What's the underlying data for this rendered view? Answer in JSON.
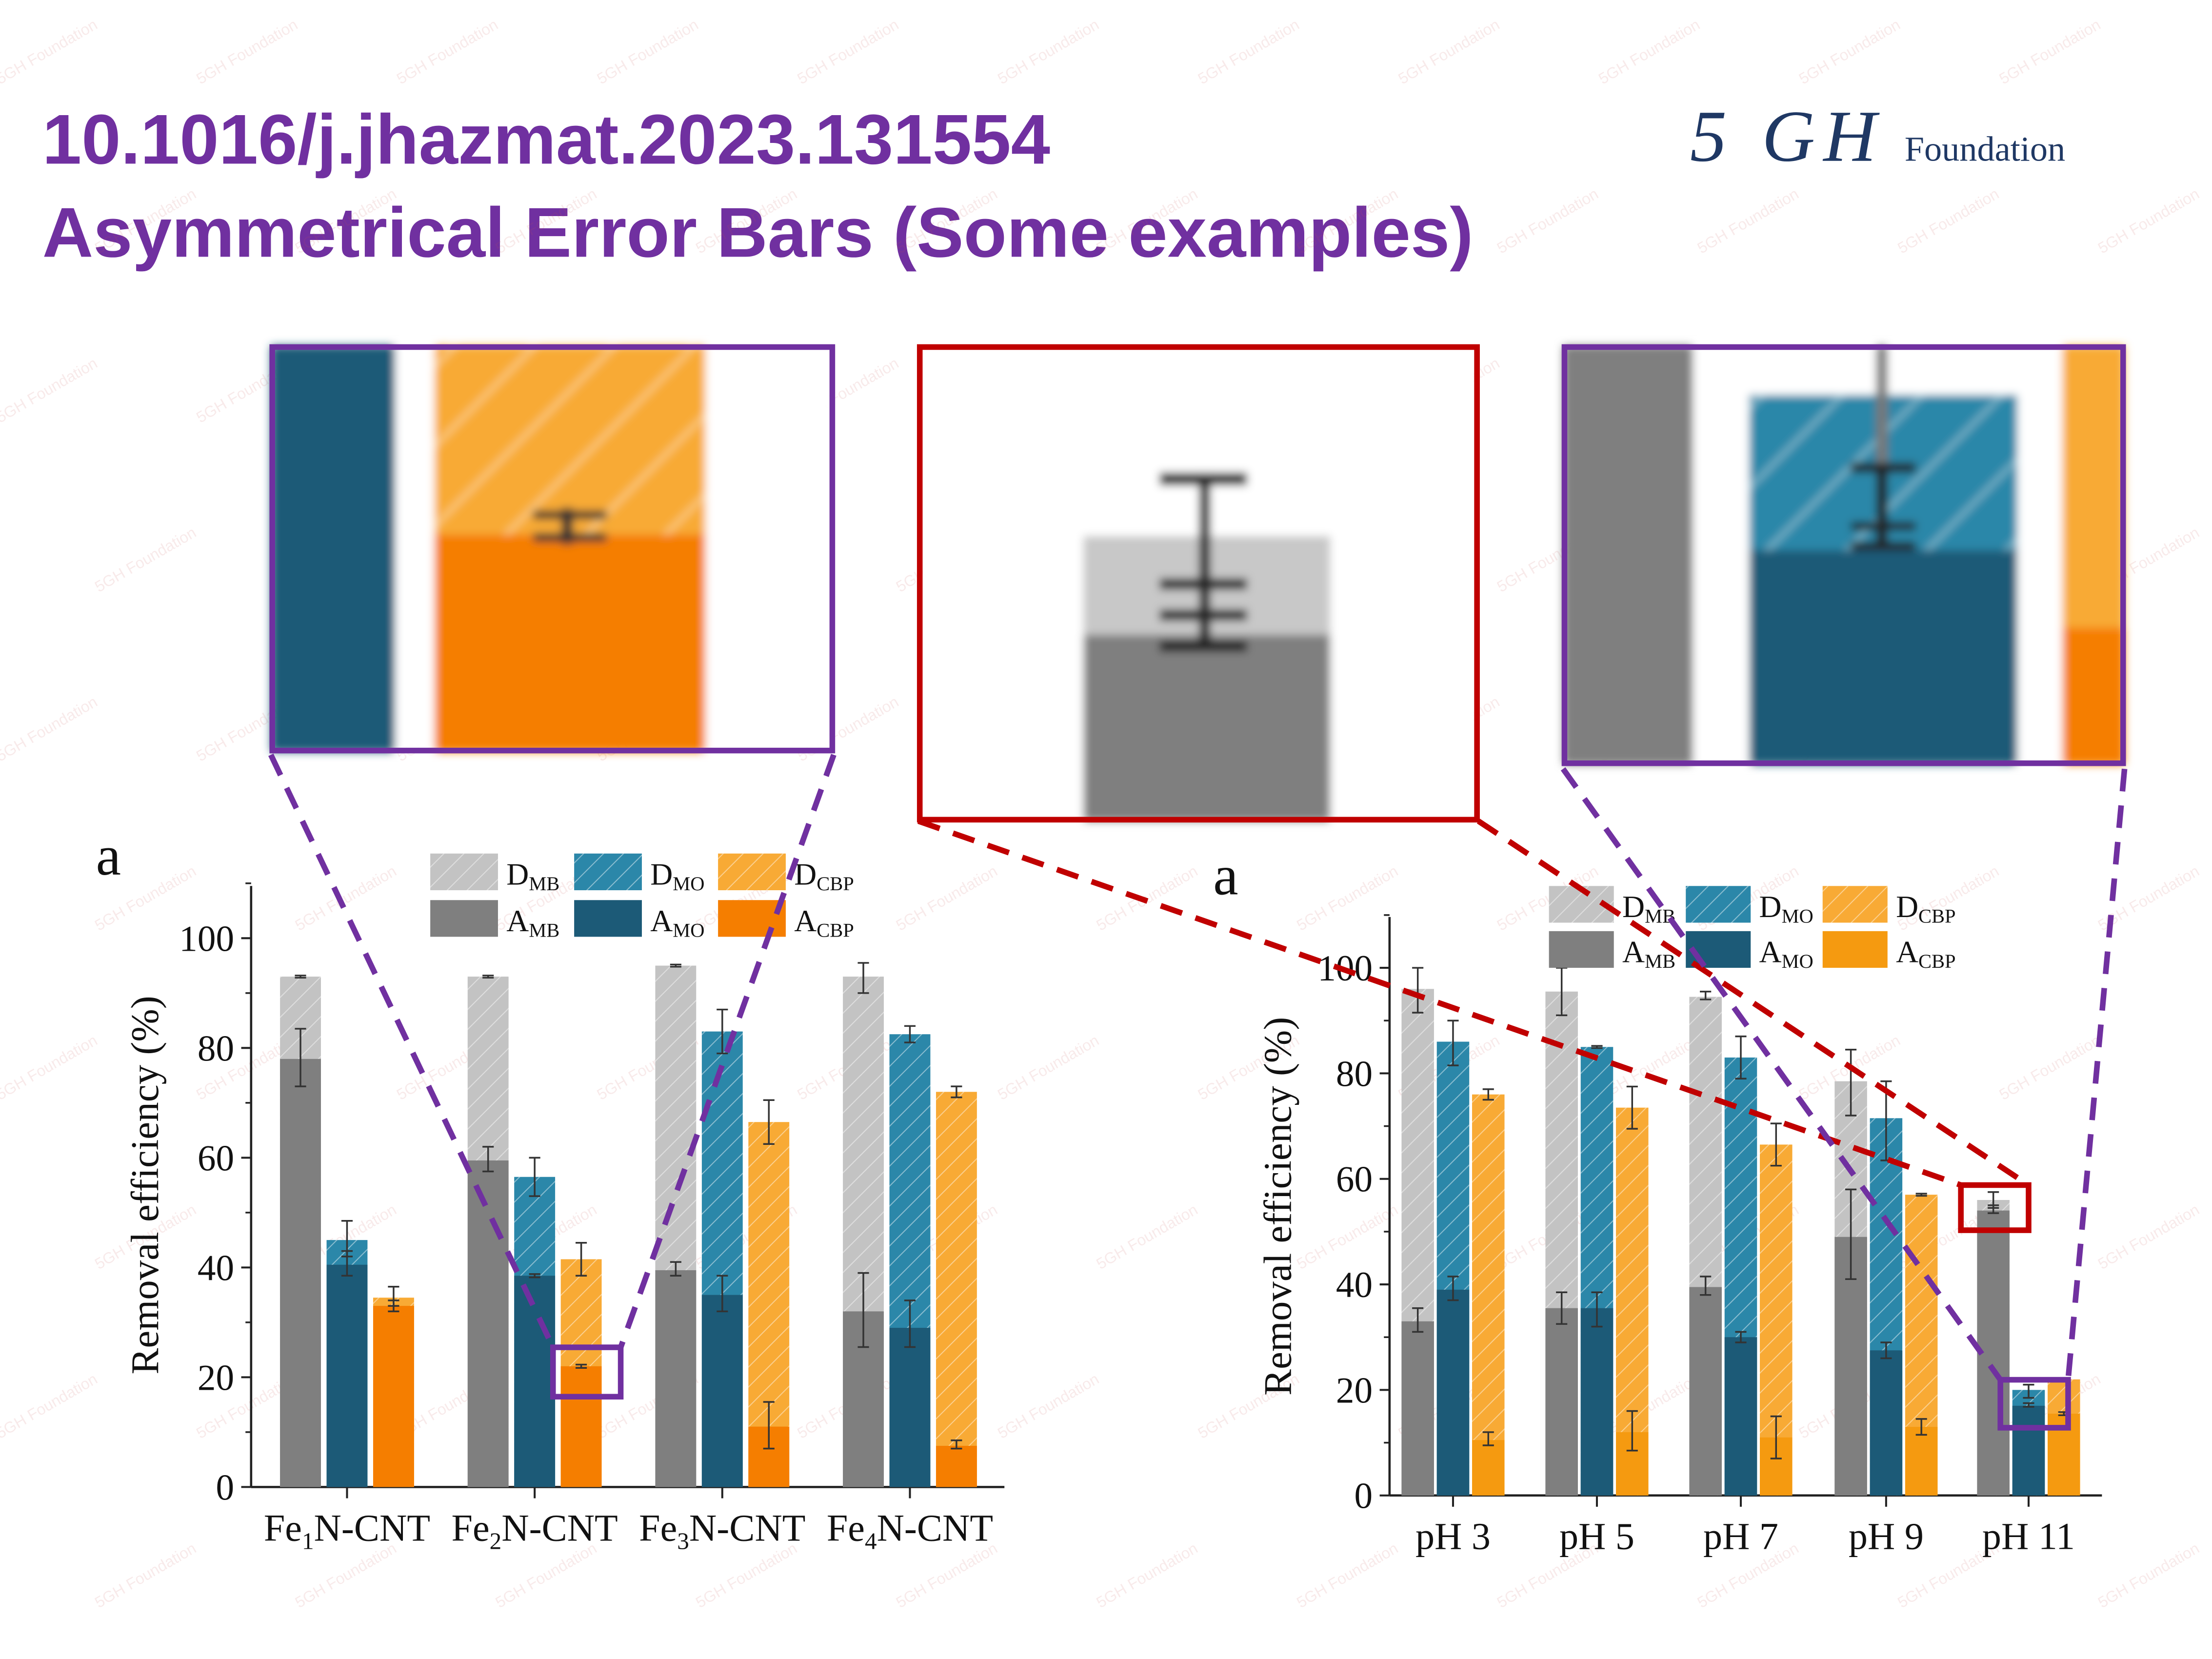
{
  "slide": {
    "title_line1": "10.1016/j.jhazmat.2023.131554",
    "title_line2": "Asymmetrical Error Bars (Some examples)",
    "logo_mark": "5 GH",
    "logo_word": "Foundation",
    "watermark": "5GH Foundation",
    "accent_color": "#7030A0",
    "highlight_color": "#C00000"
  },
  "legend": [
    {
      "main": "D",
      "sub": "MB",
      "color": "#c3c3c3",
      "hatched": true
    },
    {
      "main": "D",
      "sub": "MO",
      "color": "#2b87a9",
      "hatched": true
    },
    {
      "main": "D",
      "sub": "CBP",
      "color": "#f8aa35",
      "hatched": true
    },
    {
      "main": "A",
      "sub": "MB",
      "color": "#7f7f7f",
      "hatched": false
    },
    {
      "main": "A",
      "sub": "MO",
      "color": "#1c5a77",
      "hatched": false
    },
    {
      "main": "A",
      "sub": "CBP",
      "color": "#f57e00",
      "hatched": false
    }
  ],
  "chart_data": [
    {
      "type": "bar",
      "panel_label": "a",
      "ylabel": "Removal efficiency (%)",
      "ylim": [
        0,
        110
      ],
      "yticks": [
        0,
        20,
        40,
        60,
        80,
        100
      ],
      "categories": [
        {
          "pre": "Fe",
          "sub": "1",
          "post": "N-CNT"
        },
        {
          "pre": "Fe",
          "sub": "2",
          "post": "N-CNT"
        },
        {
          "pre": "Fe",
          "sub": "3",
          "post": "N-CNT"
        },
        {
          "pre": "Fe",
          "sub": "4",
          "post": "N-CNT"
        }
      ],
      "series": [
        {
          "name": "A_MB",
          "stack": "MB",
          "values": [
            78,
            59.5,
            39.5,
            32
          ],
          "err_low": [
            73,
            57.5,
            38.5,
            25.5
          ],
          "err_high": [
            83.5,
            62,
            41,
            39
          ]
        },
        {
          "name": "D_MB",
          "stack": "MB",
          "values": [
            93,
            93,
            95,
            93
          ],
          "err_low": [
            92.8,
            92.8,
            94.8,
            90
          ],
          "err_high": [
            93.2,
            93.2,
            95.2,
            95.5
          ]
        },
        {
          "name": "A_MO",
          "stack": "MO",
          "values": [
            40.5,
            38.5,
            35,
            29
          ],
          "err_low": [
            38.5,
            38.2,
            32,
            25.5
          ],
          "err_high": [
            43,
            38.8,
            38.5,
            34
          ]
        },
        {
          "name": "D_MO",
          "stack": "MO",
          "values": [
            45,
            56.5,
            83,
            82.5
          ],
          "err_low": [
            42,
            53,
            79,
            81
          ],
          "err_high": [
            48.5,
            60,
            87,
            84
          ]
        },
        {
          "name": "A_CBP",
          "stack": "CBP",
          "values": [
            33,
            22,
            11,
            7.5
          ],
          "err_low": [
            32,
            21.7,
            7,
            7
          ],
          "err_high": [
            34,
            22.3,
            15.5,
            8.5
          ]
        },
        {
          "name": "D_CBP",
          "stack": "CBP",
          "values": [
            34.5,
            41.5,
            66.5,
            72
          ],
          "err_low": [
            33,
            38.5,
            62.5,
            71
          ],
          "err_high": [
            36.5,
            44.5,
            70.5,
            73
          ]
        }
      ]
    },
    {
      "type": "bar",
      "panel_label": "a",
      "ylabel": "Removal efficiency (%)",
      "ylim": [
        0,
        110
      ],
      "yticks": [
        0,
        20,
        40,
        60,
        80,
        100
      ],
      "categories": [
        {
          "pre": "pH 3"
        },
        {
          "pre": "pH 5"
        },
        {
          "pre": "pH 7"
        },
        {
          "pre": "pH 9"
        },
        {
          "pre": "pH 11"
        }
      ],
      "series": [
        {
          "name": "A_MB",
          "stack": "MB",
          "values": [
            33,
            35.5,
            39.5,
            49,
            54
          ],
          "err_low": [
            31,
            32.5,
            38,
            41,
            53.5
          ],
          "err_high": [
            35.5,
            38.5,
            41.5,
            58,
            55
          ]
        },
        {
          "name": "D_MB",
          "stack": "MB",
          "values": [
            96,
            95.5,
            94.5,
            78.5,
            56
          ],
          "err_low": [
            91.5,
            91,
            94,
            72,
            54.5
          ],
          "err_high": [
            100,
            100,
            95.5,
            84.5,
            57.5
          ]
        },
        {
          "name": "A_MO",
          "stack": "MO",
          "values": [
            39,
            35.5,
            30,
            27.5,
            17
          ],
          "err_low": [
            37,
            32,
            29,
            26,
            16.8
          ],
          "err_high": [
            41.5,
            38.5,
            31,
            29,
            17.5
          ]
        },
        {
          "name": "D_MO",
          "stack": "MO",
          "values": [
            86,
            85,
            83,
            71.5,
            20
          ],
          "err_low": [
            81.5,
            84.8,
            79,
            63.5,
            18.5
          ],
          "err_high": [
            90,
            85.2,
            87,
            78.5,
            21
          ]
        },
        {
          "name": "A_CBP",
          "stack": "CBP",
          "values": [
            10.5,
            12,
            11,
            13,
            15.5
          ],
          "err_low": [
            9.5,
            8.5,
            7,
            11.5,
            15.2
          ],
          "err_high": [
            12,
            16,
            15,
            14.5,
            15.8
          ]
        },
        {
          "name": "D_CBP",
          "stack": "CBP",
          "values": [
            76,
            73.5,
            66.5,
            57,
            22
          ],
          "err_low": [
            75,
            69.5,
            62.5,
            56.8,
            21.8
          ],
          "err_high": [
            77,
            77.5,
            70.5,
            57.2,
            22.2
          ]
        }
      ]
    }
  ]
}
